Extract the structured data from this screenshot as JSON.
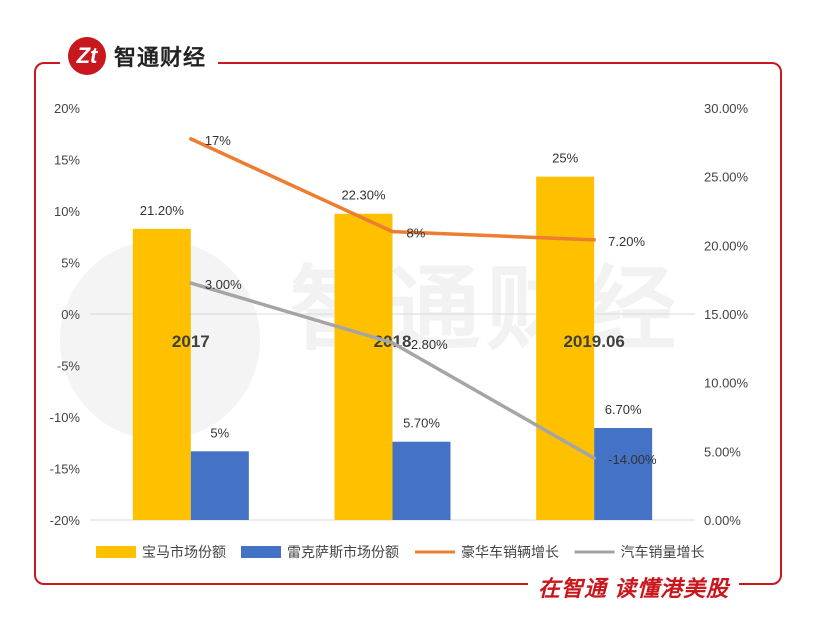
{
  "brand": {
    "logo_text": "Zt",
    "name": "智通财经"
  },
  "slogan": "在智通 读懂港美股",
  "watermark": "智通财经",
  "colors": {
    "bmw": "#FFC000",
    "lexus": "#4472C4",
    "luxury_growth": "#ED7D31",
    "auto_growth": "#A5A5A5",
    "frame": "#C9171E"
  },
  "chart_data": {
    "type": "bar",
    "categories": [
      "2017",
      "2018",
      "2019.06"
    ],
    "left_axis": {
      "ylim": [
        -20,
        20
      ],
      "ticks": [
        20,
        15,
        10,
        5,
        0,
        -5,
        -10,
        -15,
        -20
      ],
      "tick_labels": [
        "20%",
        "15%",
        "10%",
        "5%",
        "0%",
        "-5%",
        "-10%",
        "-15%",
        "-20%"
      ]
    },
    "right_axis": {
      "ylim": [
        0,
        30
      ],
      "ticks": [
        30,
        25,
        20,
        15,
        10,
        5,
        0
      ],
      "tick_labels": [
        "30.00%",
        "25.00%",
        "20.00%",
        "15.00%",
        "10.00%",
        "5.00%",
        "0.00%"
      ]
    },
    "series": [
      {
        "name": "宝马市场份额",
        "kind": "bar",
        "axis": "right",
        "color": "#FFC000",
        "values": [
          21.2,
          22.3,
          25
        ],
        "labels": [
          "21.20%",
          "22.30%",
          "25%"
        ]
      },
      {
        "name": "雷克萨斯市场份额",
        "kind": "bar",
        "axis": "right",
        "color": "#4472C4",
        "values": [
          5,
          5.7,
          6.7
        ],
        "labels": [
          "5%",
          "5.70%",
          "6.70%"
        ]
      },
      {
        "name": "豪华车销辆增长",
        "kind": "line",
        "axis": "left",
        "color": "#ED7D31",
        "values": [
          17,
          8,
          7.2
        ],
        "labels": [
          "17%",
          "8%",
          "7.20%"
        ]
      },
      {
        "name": "汽车销量增长",
        "kind": "line",
        "axis": "left",
        "color": "#A5A5A5",
        "values": [
          3.0,
          -2.8,
          -14.0
        ],
        "labels": [
          "3.00%",
          "-2.80%",
          "-14.00%"
        ]
      }
    ],
    "legend_position": "bottom"
  }
}
